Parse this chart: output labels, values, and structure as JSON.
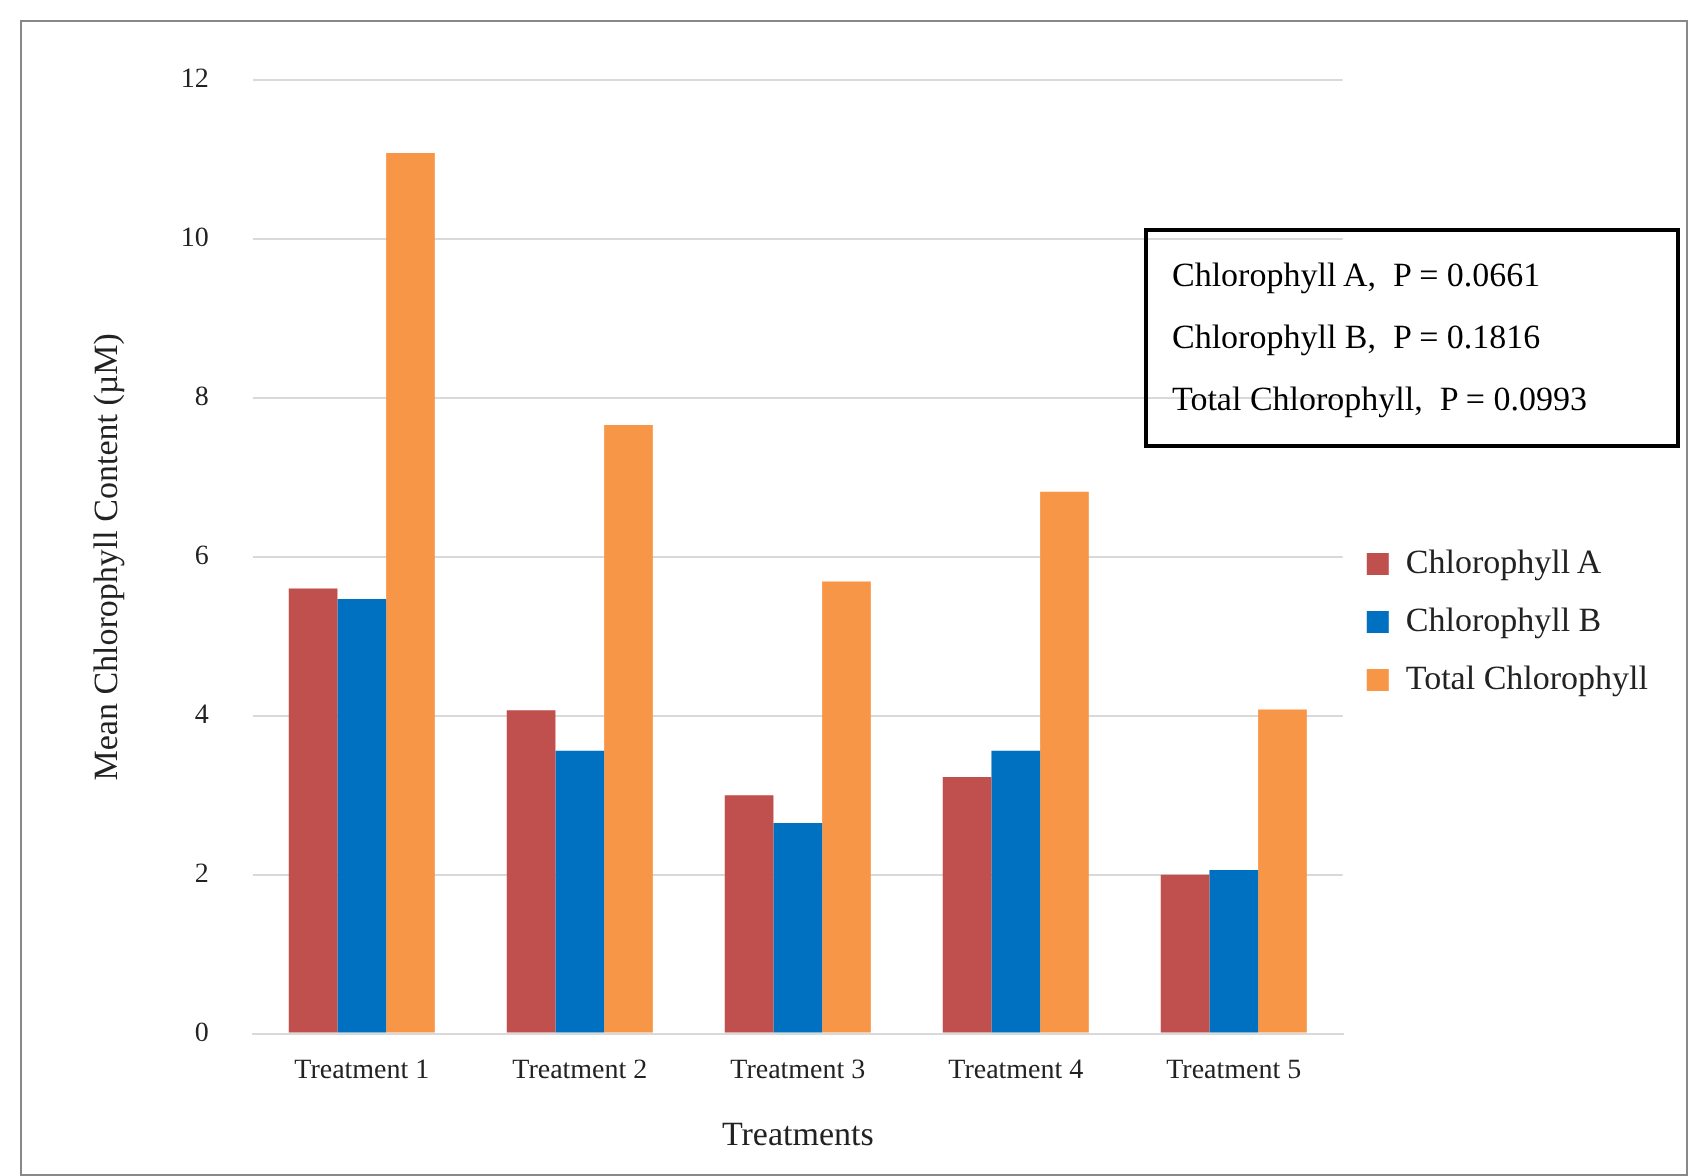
{
  "chart_data": {
    "type": "bar",
    "xlabel": "Treatments",
    "ylabel": "Mean Chlorophyll Content (µM)",
    "categories": [
      "Treatment 1",
      "Treatment 2",
      "Treatment 3",
      "Treatment 4",
      "Treatment 5"
    ],
    "series": [
      {
        "name": "Chlorophyll A",
        "color": "#c0504d",
        "values": [
          5.6,
          4.07,
          3.0,
          3.23,
          2.0
        ]
      },
      {
        "name": "Chlorophyll B",
        "color": "#0070c0",
        "values": [
          5.47,
          3.56,
          2.65,
          3.56,
          2.06
        ]
      },
      {
        "name": "Total Chlorophyll",
        "color": "#f79646",
        "values": [
          11.08,
          7.66,
          5.69,
          6.82,
          4.08
        ]
      }
    ],
    "ylim": [
      0,
      12
    ],
    "yticks": [
      0,
      2,
      4,
      6,
      8,
      10,
      12
    ],
    "grid": "y",
    "legend": "right",
    "annotations": [
      "Chlorophyll A,  P = 0.0661",
      "Chlorophyll B,  P = 0.1816",
      "Total Chlorophyll,  P = 0.0993"
    ]
  }
}
